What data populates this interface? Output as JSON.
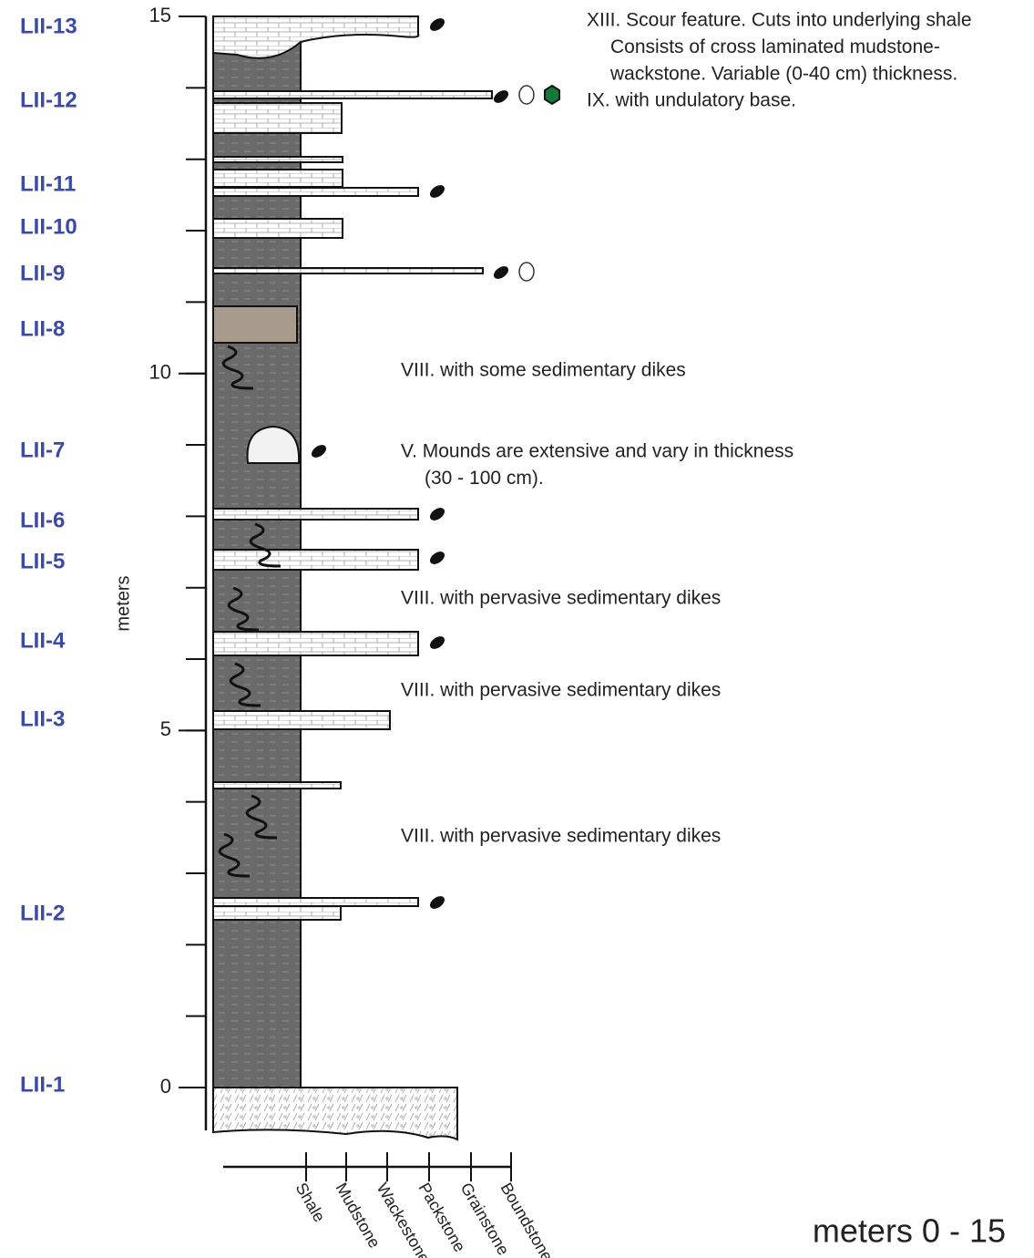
{
  "axis": {
    "label": "meters",
    "ticks": [
      0,
      5,
      10,
      15
    ]
  },
  "samples": [
    "LII-13",
    "LII-12",
    "LII-11",
    "LII-10",
    "LII-9",
    "LII-8",
    "LII-7",
    "LII-6",
    "LII-5",
    "LII-4",
    "LII-3",
    "LII-2",
    "LII-1"
  ],
  "annotations": [
    [
      "XIII. Scour feature. Cuts into underlying shale",
      "Consists of cross laminated mudstone-",
      "wackstone. Variable (0-40 cm) thickness."
    ],
    [
      "IX. with undulatory base."
    ],
    [
      "VIII. with some sedimentary dikes"
    ],
    [
      "V. Mounds are extensive and vary in thickness",
      "(30 - 100 cm)."
    ],
    [
      "VIII. with pervasive sedimentary dikes"
    ],
    [
      "VIII. with pervasive sedimentary dikes"
    ],
    [
      "VIII. with pervasive sedimentary dikes"
    ]
  ],
  "lithology": [
    "Shale",
    "Mudstone",
    "Wackestone",
    "Packstone",
    "Grainstone",
    "Boundstone"
  ],
  "caption": "meters 0 - 15"
}
